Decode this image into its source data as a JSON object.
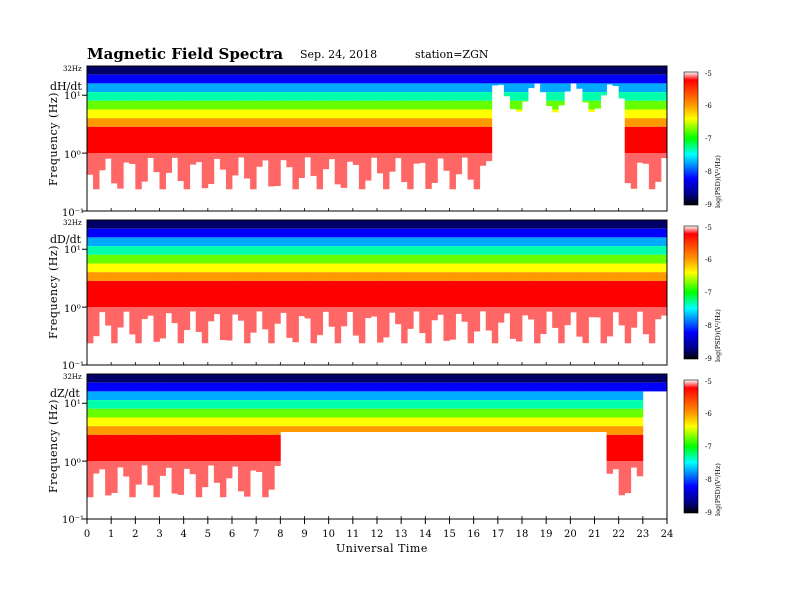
{
  "figure": {
    "title": "Magnetic  Field  Spectra",
    "date": "Sep. 24, 2018",
    "station": "station=ZGN"
  },
  "chart_data": [
    {
      "type": "heatmap",
      "component": "dH/dt",
      "ylabel": "Frequency  (Hz)",
      "yscale": "log",
      "ylim": [
        0.1,
        32
      ],
      "y_top_label": "32Hz",
      "y_ticks": [
        {
          "value": 10,
          "label": "10¹"
        },
        {
          "value": 1,
          "label": "10⁰"
        },
        {
          "value": 0.1,
          "label": "10⁻¹"
        }
      ],
      "xlim": [
        0,
        24
      ],
      "colorbar": {
        "label": "log(PSD)(V²/Hz)",
        "min": -9,
        "max": -5,
        "ticks": [
          "-5",
          "-6",
          "-7",
          "-8",
          "-9"
        ]
      }
    },
    {
      "type": "heatmap",
      "component": "dD/dt",
      "ylabel": "Frequency  (Hz)",
      "yscale": "log",
      "ylim": [
        0.1,
        32
      ],
      "y_top_label": "32Hz",
      "y_ticks": [
        {
          "value": 10,
          "label": "10¹"
        },
        {
          "value": 1,
          "label": "10⁰"
        },
        {
          "value": 0.1,
          "label": "10⁻¹"
        }
      ],
      "xlim": [
        0,
        24
      ],
      "colorbar": {
        "label": "log(PSD)(V²/Hz)",
        "min": -9,
        "max": -5,
        "ticks": [
          "-5",
          "-6",
          "-7",
          "-8",
          "-9"
        ]
      }
    },
    {
      "type": "heatmap",
      "component": "dZ/dt",
      "ylabel": "Frequency  (Hz)",
      "yscale": "log",
      "ylim": [
        0.1,
        32
      ],
      "y_top_label": "32Hz",
      "y_ticks": [
        {
          "value": 10,
          "label": "10¹"
        },
        {
          "value": 1,
          "label": "10⁰"
        },
        {
          "value": 0.1,
          "label": "10⁻¹"
        }
      ],
      "xlim": [
        0,
        24
      ],
      "xlabel": "Universal  Time",
      "x_ticks": [
        "0",
        "1",
        "2",
        "3",
        "4",
        "5",
        "6",
        "7",
        "8",
        "9",
        "10",
        "11",
        "12",
        "13",
        "14",
        "15",
        "16",
        "17",
        "18",
        "19",
        "20",
        "21",
        "22",
        "23",
        "24"
      ],
      "colorbar": {
        "label": "log(PSD)(V²/Hz)",
        "min": -9,
        "max": -5,
        "ticks": [
          "-5",
          "-6",
          "-7",
          "-8",
          "-9"
        ]
      }
    }
  ]
}
